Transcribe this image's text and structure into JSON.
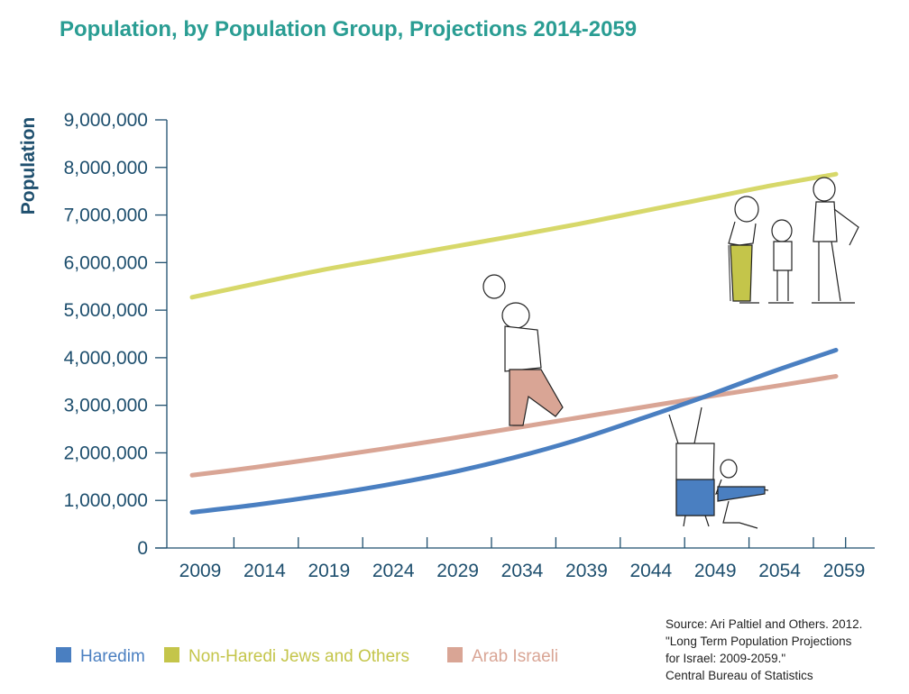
{
  "chart_data": {
    "type": "line",
    "title": "Population, by Population Group, Projections 2014-2059",
    "ylabel": "Population",
    "xlabel": "",
    "x": [
      2009,
      2014,
      2019,
      2024,
      2029,
      2034,
      2039,
      2044,
      2049,
      2054,
      2059
    ],
    "x_tick_labels": [
      "2009",
      "2014",
      "2019",
      "2024",
      "2029",
      "2034",
      "2039",
      "2044",
      "2049",
      "2054",
      "2059"
    ],
    "y_tick_labels": [
      "0",
      "1,000,000",
      "2,000,000",
      "3,000,000",
      "4,000,000",
      "5,000,000",
      "6,000,000",
      "7,000,000",
      "8,000,000",
      "9,000,000"
    ],
    "ylim": [
      0,
      9000000
    ],
    "grid": false,
    "legend_position": "bottom-left",
    "series": [
      {
        "name": "Haredim",
        "color": "#4a7fc1",
        "values": [
          750000,
          910000,
          1100000,
          1320000,
          1580000,
          1900000,
          2280000,
          2730000,
          3200000,
          3700000,
          4160000
        ]
      },
      {
        "name": "Non-Haredi Jews and Others",
        "color": "#d7d86a",
        "values": [
          5270000,
          5560000,
          5840000,
          6080000,
          6320000,
          6560000,
          6810000,
          7080000,
          7350000,
          7620000,
          7860000
        ]
      },
      {
        "name": "Arab Israeli",
        "color": "#d9a595",
        "values": [
          1530000,
          1700000,
          1890000,
          2090000,
          2300000,
          2520000,
          2740000,
          2960000,
          3180000,
          3390000,
          3610000
        ]
      }
    ]
  },
  "colors": {
    "title": "#2a9d93",
    "axis": "#1e4f6e"
  },
  "source": {
    "lines": [
      "Source: Ari Paltiel and Others. 2012.",
      "\"Long Term Population Projections",
      "for Israel: 2009-2059.\"",
      "Central Bureau of Statistics"
    ]
  }
}
